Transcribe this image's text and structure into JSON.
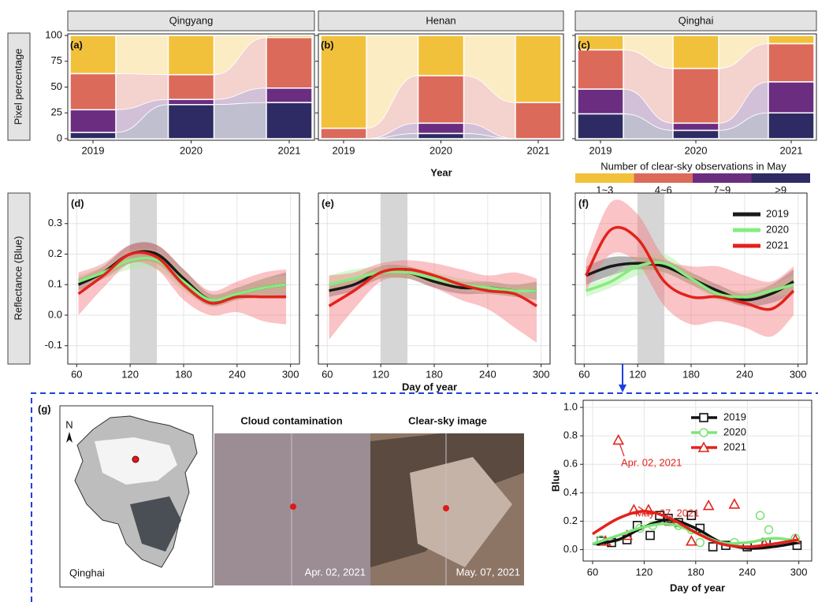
{
  "chart_data": [
    {
      "type": "stacked_bar",
      "ylabel": "Pixel percentage",
      "xlabel": "Year",
      "legend_title": "Number of clear-sky observations in May",
      "categories": [
        "2019",
        "2020",
        "2021"
      ],
      "series": [
        {
          "name": "1~3",
          "color": "#f2c13c"
        },
        {
          "name": "4~6",
          "color": "#dc6a5b"
        },
        {
          "name": "7~9",
          "color": "#6b2d80"
        },
        {
          "name": ">9",
          "color": "#2e2b64"
        }
      ],
      "ylim": [
        0,
        100
      ],
      "yticks": [
        0,
        25,
        50,
        75,
        100
      ],
      "panels": [
        {
          "title": "Qingyang",
          "label": "(a)",
          "values": [
            [
              37,
              38,
              2
            ],
            [
              35,
              24,
              49
            ],
            [
              22,
              5,
              14
            ],
            [
              6,
              33,
              35
            ]
          ]
        },
        {
          "title": "Henan",
          "label": "(b)",
          "values": [
            [
              90,
              39,
              65
            ],
            [
              10,
              46,
              35
            ],
            [
              0,
              10,
              0
            ],
            [
              0,
              5,
              0
            ]
          ]
        },
        {
          "title": "Qinghai",
          "label": "(c)",
          "values": [
            [
              14,
              32,
              8
            ],
            [
              38,
              53,
              37
            ],
            [
              24,
              7,
              30
            ],
            [
              24,
              8,
              25
            ]
          ]
        }
      ]
    },
    {
      "type": "line_band",
      "ylabel": "Reflectance (Blue)",
      "xlabel": "Day of year",
      "x": [
        62,
        90,
        120,
        150,
        180,
        210,
        240,
        270,
        295
      ],
      "xlim": [
        50,
        310
      ],
      "xticks": [
        60,
        120,
        180,
        240,
        300
      ],
      "ylim": [
        -0.16,
        0.4
      ],
      "yticks": [
        -0.1,
        {
          "value": 0,
          "label": "0.0"
        },
        0.1,
        0.2,
        0.3
      ],
      "highlight": [
        120,
        150
      ],
      "grid": true,
      "series": [
        {
          "name": "2019",
          "color": "#1a1a1a",
          "band_color": "#555555"
        },
        {
          "name": "2020",
          "color": "#86ec7e",
          "band_color": "#a8f09e"
        },
        {
          "name": "2021",
          "color": "#e3221b",
          "band_color": "#f47a80"
        }
      ],
      "panels": [
        {
          "label": "(d)",
          "series": [
            {
              "values": [
                0.1,
                0.14,
                0.2,
                0.2,
                0.12,
                0.05,
                0.07,
                0.09,
                0.1
              ],
              "lower": [
                0.08,
                0.12,
                0.17,
                0.17,
                0.09,
                0.03,
                0.05,
                0.06,
                0.06
              ],
              "upper": [
                0.12,
                0.16,
                0.23,
                0.23,
                0.15,
                0.07,
                0.09,
                0.12,
                0.14
              ]
            },
            {
              "values": [
                0.11,
                0.14,
                0.18,
                0.18,
                0.11,
                0.05,
                0.07,
                0.09,
                0.1
              ],
              "lower": [
                0.09,
                0.12,
                0.15,
                0.15,
                0.08,
                0.03,
                0.05,
                0.06,
                0.07
              ],
              "upper": [
                0.13,
                0.16,
                0.21,
                0.21,
                0.14,
                0.07,
                0.09,
                0.12,
                0.13
              ]
            },
            {
              "values": [
                0.07,
                0.13,
                0.2,
                0.19,
                0.1,
                0.04,
                0.06,
                0.06,
                0.06
              ],
              "lower": [
                0.0,
                0.09,
                0.17,
                0.15,
                0.05,
                0.0,
                0.01,
                -0.02,
                -0.03
              ],
              "upper": [
                0.14,
                0.17,
                0.23,
                0.23,
                0.15,
                0.08,
                0.11,
                0.14,
                0.15
              ]
            }
          ]
        },
        {
          "label": "(e)",
          "series": [
            {
              "values": [
                0.08,
                0.1,
                0.14,
                0.14,
                0.11,
                0.09,
                0.09,
                0.08,
                0.08
              ],
              "lower": [
                0.06,
                0.08,
                0.12,
                0.12,
                0.09,
                0.07,
                0.07,
                0.06,
                0.05
              ],
              "upper": [
                0.1,
                0.12,
                0.16,
                0.16,
                0.13,
                0.11,
                0.11,
                0.1,
                0.11
              ]
            },
            {
              "values": [
                0.1,
                0.12,
                0.14,
                0.14,
                0.12,
                0.1,
                0.09,
                0.08,
                0.08
              ],
              "lower": [
                0.07,
                0.1,
                0.12,
                0.12,
                0.1,
                0.08,
                0.07,
                0.06,
                0.05
              ],
              "upper": [
                0.13,
                0.15,
                0.16,
                0.16,
                0.14,
                0.12,
                0.11,
                0.1,
                0.11
              ]
            },
            {
              "values": [
                0.03,
                0.08,
                0.14,
                0.15,
                0.13,
                0.1,
                0.08,
                0.07,
                0.03
              ],
              "lower": [
                -0.08,
                0.02,
                0.11,
                0.12,
                0.09,
                0.05,
                0.02,
                -0.04,
                -0.09
              ],
              "upper": [
                0.13,
                0.14,
                0.17,
                0.18,
                0.17,
                0.15,
                0.13,
                0.14,
                0.12
              ]
            }
          ]
        },
        {
          "label": "(f)",
          "series": [
            {
              "values": [
                0.13,
                0.16,
                0.17,
                0.16,
                0.12,
                0.08,
                0.05,
                0.07,
                0.11
              ],
              "lower": [
                0.1,
                0.13,
                0.15,
                0.14,
                0.1,
                0.06,
                0.03,
                0.04,
                0.07
              ],
              "upper": [
                0.16,
                0.19,
                0.19,
                0.18,
                0.14,
                0.1,
                0.07,
                0.1,
                0.15
              ]
            },
            {
              "values": [
                0.08,
                0.11,
                0.16,
                0.17,
                0.12,
                0.07,
                0.06,
                0.08,
                0.1
              ],
              "lower": [
                0.06,
                0.09,
                0.13,
                0.14,
                0.1,
                0.05,
                0.04,
                0.06,
                0.07
              ],
              "upper": [
                0.1,
                0.13,
                0.19,
                0.2,
                0.14,
                0.09,
                0.08,
                0.1,
                0.13
              ]
            },
            {
              "values": [
                0.13,
                0.28,
                0.25,
                0.11,
                0.06,
                0.06,
                0.04,
                0.02,
                0.08
              ],
              "lower": [
                0.08,
                0.2,
                0.17,
                0.03,
                -0.03,
                -0.02,
                -0.04,
                -0.07,
                0.0
              ],
              "upper": [
                0.18,
                0.37,
                0.33,
                0.19,
                0.16,
                0.16,
                0.13,
                0.11,
                0.16
              ]
            }
          ]
        }
      ]
    },
    {
      "type": "scatter_fit",
      "ylabel": "Blue",
      "xlabel": "Day of year",
      "xlim": [
        49,
        315
      ],
      "xticks": [
        60,
        120,
        180,
        240,
        300
      ],
      "ylim": [
        -0.08,
        1.05
      ],
      "yticks": [
        {
          "value": 0,
          "label": "0.0"
        },
        0.2,
        0.4,
        0.6,
        0.8,
        {
          "value": 1,
          "label": "1.0"
        }
      ],
      "grid": true,
      "fit_x": [
        60,
        90,
        120,
        150,
        180,
        210,
        240,
        270,
        300
      ],
      "series": [
        {
          "name": "2019",
          "color": "#111111",
          "marker": "square",
          "x": [
            70,
            82,
            100,
            112,
            127,
            138,
            148,
            160,
            175,
            185,
            200,
            215,
            240,
            262,
            298
          ],
          "values": [
            0.06,
            0.05,
            0.07,
            0.17,
            0.1,
            0.24,
            0.22,
            0.19,
            0.24,
            0.15,
            0.02,
            0.03,
            0.02,
            0.05,
            0.03
          ],
          "fit": [
            0.04,
            0.07,
            0.16,
            0.21,
            0.15,
            0.05,
            0.01,
            0.02,
            0.05
          ]
        },
        {
          "name": "2020",
          "color": "#7ee47a",
          "marker": "circle",
          "x": [
            70,
            115,
            130,
            150,
            160,
            175,
            185,
            225,
            255,
            265,
            296
          ],
          "values": [
            0.07,
            0.15,
            0.17,
            0.2,
            0.17,
            0.14,
            0.05,
            0.05,
            0.24,
            0.14,
            0.08
          ],
          "fit": [
            0.04,
            0.1,
            0.16,
            0.18,
            0.12,
            0.05,
            0.05,
            0.08,
            0.06
          ]
        },
        {
          "name": "2021",
          "color": "#e3221b",
          "marker": "triangle",
          "x": [
            75,
            90,
            100,
            108,
            125,
            150,
            175,
            195,
            225,
            260,
            296
          ],
          "values": [
            0.06,
            0.77,
            0.1,
            0.28,
            0.28,
            0.2,
            0.06,
            0.31,
            0.32,
            0.04,
            0.07
          ],
          "fit": [
            0.11,
            0.22,
            0.27,
            0.22,
            0.12,
            0.04,
            0.02,
            0.04,
            0.07
          ]
        }
      ],
      "annotations": [
        {
          "text": "Apr. 02, 2021",
          "x": 90,
          "y": 0.77
        },
        {
          "text": "May. 07, 2021",
          "x": 125,
          "y": 0.28
        }
      ]
    }
  ],
  "panel_g": {
    "label": "(g)",
    "north": "N",
    "region": "Qinghai",
    "images": [
      {
        "title": "Cloud contamination",
        "date": "Apr. 02, 2021"
      },
      {
        "title": "Clear-sky image",
        "date": "May. 07, 2021"
      }
    ]
  }
}
